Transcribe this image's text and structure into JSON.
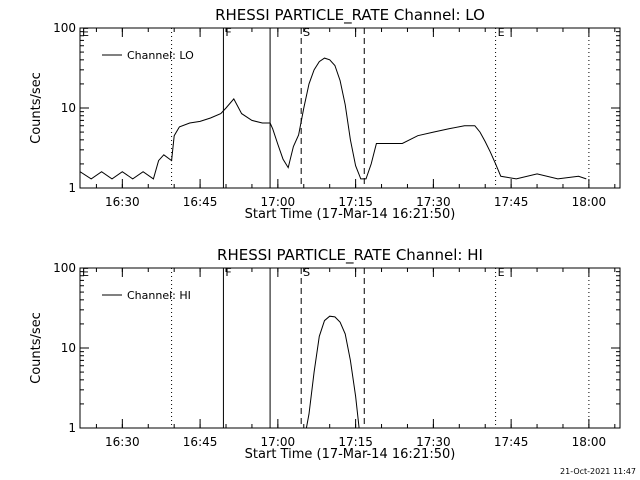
{
  "chart_data": [
    {
      "type": "line",
      "title": "RHESSI PARTICLE_RATE Channel: LO",
      "xlabel": "Start Time (17-Mar-14 16:21:50)",
      "ylabel": "Counts/sec",
      "yscale": "log",
      "ylim": [
        1,
        100
      ],
      "xlim": [
        "16:21:50",
        "18:06:00"
      ],
      "x_ticks": [
        "16:30",
        "16:45",
        "17:00",
        "17:15",
        "17:30",
        "17:45",
        "18:00"
      ],
      "y_ticks": [
        "1",
        "10",
        "100"
      ],
      "legend": {
        "position": "top-left",
        "entries": [
          "Channel: LO"
        ]
      },
      "markers": [
        {
          "label": "E",
          "time": "16:21:50",
          "style": "dotted"
        },
        {
          "label": "",
          "time": "16:39:30",
          "style": "dotted"
        },
        {
          "label": "F",
          "time": "16:49:30",
          "style": "solid"
        },
        {
          "label": "",
          "time": "16:58:30",
          "style": "solid"
        },
        {
          "label": "S",
          "time": "17:04:30",
          "style": "dashed"
        },
        {
          "label": "",
          "time": "17:16:40",
          "style": "dashed"
        },
        {
          "label": "E",
          "time": "17:42:00",
          "style": "dotted"
        },
        {
          "label": "",
          "time": "18:00:00",
          "style": "dotted"
        }
      ],
      "series": [
        {
          "name": "Channel: LO",
          "x": [
            "16:21:50",
            "16:24:00",
            "16:26:00",
            "16:28:00",
            "16:30:00",
            "16:32:00",
            "16:34:00",
            "16:36:00",
            "16:37:00",
            "16:38:00",
            "16:39:30",
            "16:40:00",
            "16:41:00",
            "16:43:00",
            "16:45:00",
            "16:47:00",
            "16:49:00",
            "16:50:00",
            "16:51:30",
            "16:53:00",
            "16:55:00",
            "16:57:00",
            "16:58:30",
            "16:59:00",
            "17:00:00",
            "17:01:00",
            "17:02:00",
            "17:03:00",
            "17:04:00",
            "17:05:00",
            "17:06:00",
            "17:07:00",
            "17:08:00",
            "17:09:00",
            "17:10:00",
            "17:11:00",
            "17:12:00",
            "17:13:00",
            "17:14:00",
            "17:15:00",
            "17:16:00",
            "17:17:00",
            "17:18:00",
            "17:19:00",
            "17:21:00",
            "17:24:00",
            "17:27:00",
            "17:30:00",
            "17:33:00",
            "17:36:00",
            "17:38:00",
            "17:39:00",
            "17:40:00",
            "17:41:00",
            "17:42:00",
            "17:43:00",
            "17:46:00",
            "17:50:00",
            "17:54:00",
            "17:58:00",
            "17:59:30"
          ],
          "values": [
            1.6,
            1.3,
            1.6,
            1.3,
            1.6,
            1.3,
            1.6,
            1.3,
            2.2,
            2.6,
            2.2,
            4.5,
            5.8,
            6.5,
            6.8,
            7.5,
            8.5,
            10.0,
            13.0,
            8.5,
            7.0,
            6.5,
            6.5,
            5.5,
            3.5,
            2.3,
            1.8,
            3.3,
            4.6,
            10.0,
            20.0,
            30.0,
            38.0,
            42.0,
            40.0,
            34.0,
            22.0,
            11.0,
            4.0,
            1.9,
            1.3,
            1.3,
            2.0,
            3.6,
            3.6,
            3.6,
            4.5,
            5.0,
            5.5,
            6.0,
            6.0,
            5.0,
            3.8,
            2.8,
            2.0,
            1.4,
            1.3,
            1.5,
            1.3,
            1.4,
            1.3
          ]
        }
      ]
    },
    {
      "type": "line",
      "title": "RHESSI PARTICLE_RATE Channel: HI",
      "xlabel": "Start Time (17-Mar-14 16:21:50)",
      "ylabel": "Counts/sec",
      "yscale": "log",
      "ylim": [
        1,
        100
      ],
      "xlim": [
        "16:21:50",
        "18:06:00"
      ],
      "x_ticks": [
        "16:30",
        "16:45",
        "17:00",
        "17:15",
        "17:30",
        "17:45",
        "18:00"
      ],
      "y_ticks": [
        "1",
        "10",
        "100"
      ],
      "legend": {
        "position": "top-left",
        "entries": [
          "Channel: HI"
        ]
      },
      "markers": [
        {
          "label": "E",
          "time": "16:21:50",
          "style": "dotted"
        },
        {
          "label": "",
          "time": "16:39:30",
          "style": "dotted"
        },
        {
          "label": "F",
          "time": "16:49:30",
          "style": "solid"
        },
        {
          "label": "",
          "time": "16:58:30",
          "style": "solid"
        },
        {
          "label": "S",
          "time": "17:04:30",
          "style": "dashed"
        },
        {
          "label": "",
          "time": "17:16:40",
          "style": "dashed"
        },
        {
          "label": "E",
          "time": "17:42:00",
          "style": "dotted"
        },
        {
          "label": "",
          "time": "18:00:00",
          "style": "dotted"
        }
      ],
      "series": [
        {
          "name": "Channel: HI",
          "x": [
            "17:05:30",
            "17:06:00",
            "17:07:00",
            "17:08:00",
            "17:09:00",
            "17:10:00",
            "17:11:00",
            "17:12:00",
            "17:13:00",
            "17:14:00",
            "17:15:00",
            "17:15:40"
          ],
          "values": [
            1.0,
            1.5,
            5.0,
            14.0,
            22.0,
            25.0,
            24.5,
            21.0,
            15.0,
            7.0,
            2.5,
            1.0
          ]
        }
      ]
    }
  ],
  "footer": {
    "timestamp": "21-Oct-2021 11:47"
  }
}
